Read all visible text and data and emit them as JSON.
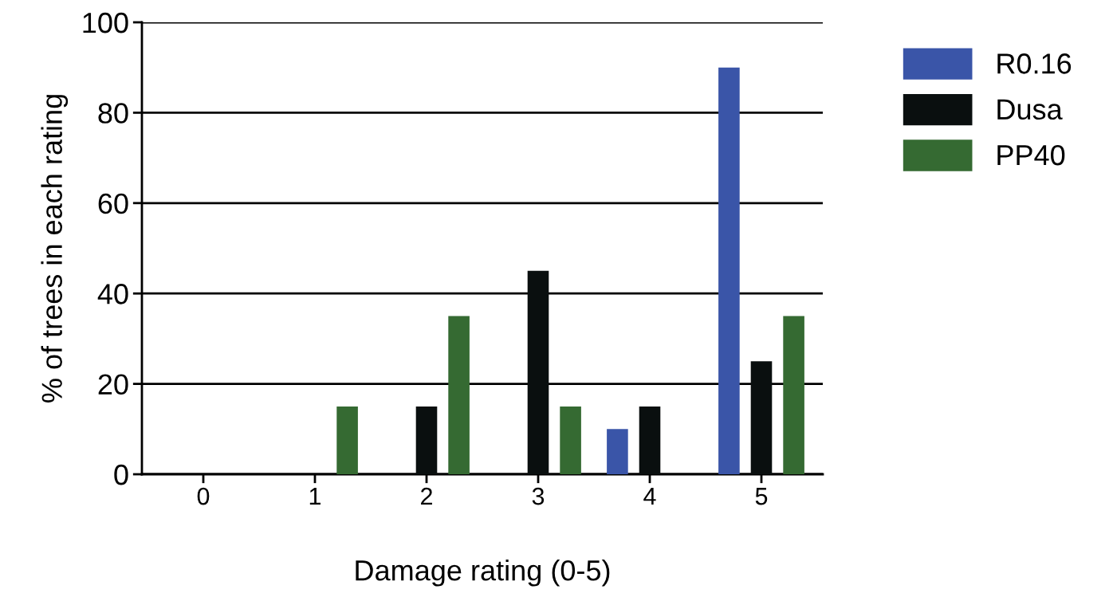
{
  "chart_data": {
    "type": "bar",
    "xlabel": "Damage rating (0-5)",
    "ylabel": "% of trees in each rating",
    "categories": [
      "0",
      "1",
      "2",
      "3",
      "4",
      "5"
    ],
    "series": [
      {
        "name": "R0.16",
        "color": "#3a55a8",
        "values": [
          0,
          0,
          0,
          0,
          10,
          90
        ]
      },
      {
        "name": "Dusa",
        "color": "#0a0f0f",
        "values": [
          0,
          0,
          15,
          45,
          15,
          25
        ]
      },
      {
        "name": "PP40",
        "color": "#356a32",
        "values": [
          0,
          15,
          35,
          15,
          0,
          35
        ]
      }
    ],
    "ylim": [
      0,
      100
    ],
    "yticks": [
      0,
      20,
      40,
      60,
      80,
      100
    ],
    "grid": "y",
    "legend": "top right"
  }
}
